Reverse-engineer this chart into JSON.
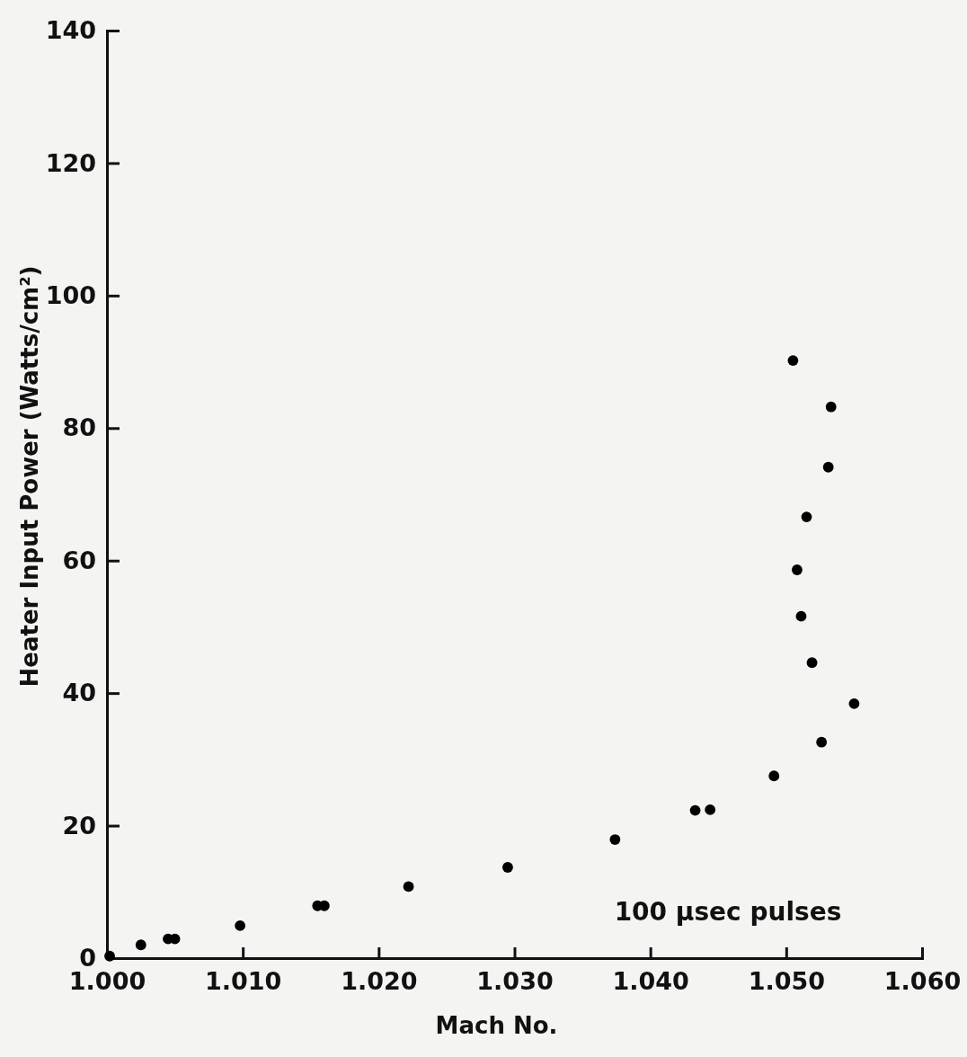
{
  "chart_data": {
    "type": "scatter",
    "xlabel": "Mach No.",
    "ylabel": "Heater Input Power (Watts/cm²)",
    "x": [
      1.0002,
      1.0025,
      1.0045,
      1.005,
      1.0098,
      1.0155,
      1.016,
      1.0222,
      1.0295,
      1.0374,
      1.0433,
      1.0444,
      1.0491,
      1.0526,
      1.055,
      1.0519,
      1.0511,
      1.0508,
      1.0515,
      1.0531,
      1.0533,
      1.0505
    ],
    "series": [
      {
        "color": "#000000",
        "values": [
          0.3,
          2.0,
          2.9,
          2.9,
          4.9,
          7.9,
          7.9,
          10.8,
          13.7,
          17.9,
          22.3,
          22.4,
          27.5,
          32.6,
          38.4,
          44.6,
          51.6,
          58.6,
          66.6,
          74.1,
          83.2,
          90.2
        ]
      }
    ],
    "xlim": [
      1.0,
      1.06
    ],
    "xticks": [
      {
        "value": 1.0,
        "label": "1.000"
      },
      {
        "value": 1.01,
        "label": "1.010"
      },
      {
        "value": 1.02,
        "label": "1.020"
      },
      {
        "value": 1.03,
        "label": "1.030"
      },
      {
        "value": 1.04,
        "label": "1.040"
      },
      {
        "value": 1.05,
        "label": "1.050"
      },
      {
        "value": 1.06,
        "label": "1.060"
      }
    ],
    "ylim": [
      0,
      140
    ],
    "yticks": [
      0,
      20,
      40,
      60,
      80,
      100,
      120,
      140
    ],
    "marker": "circle",
    "grid": false,
    "annotations": [
      "100 μsec pulses"
    ]
  }
}
